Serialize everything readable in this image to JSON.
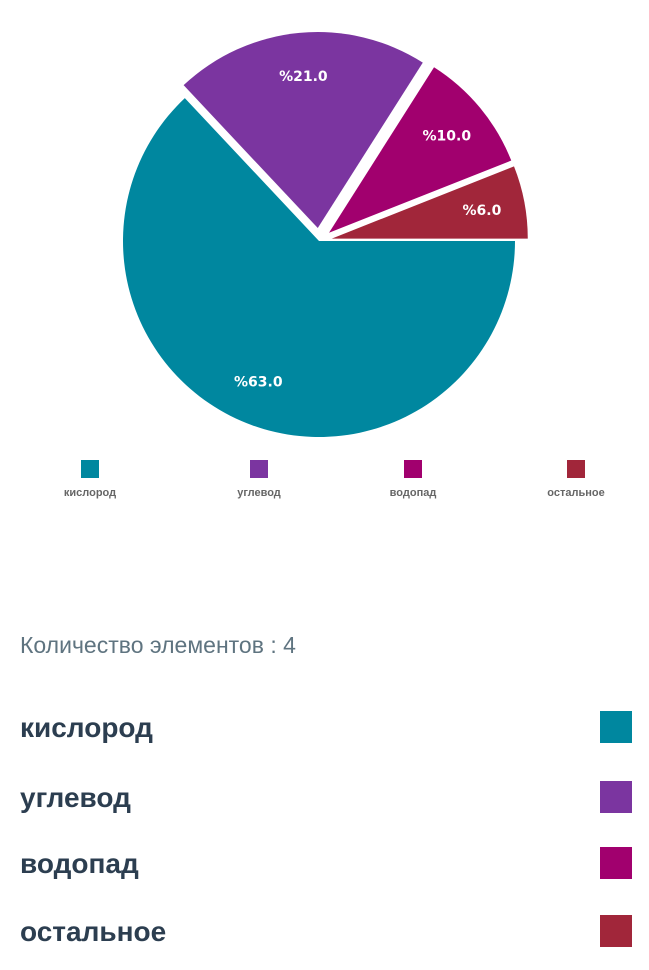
{
  "chart_data": {
    "type": "pie",
    "categories": [
      "кислород",
      "углевод",
      "водопад",
      "остальное"
    ],
    "values": [
      63.0,
      21.0,
      10.0,
      6.0
    ],
    "labels": [
      "%63.0",
      "%21.0",
      "%10.0",
      "%6.0"
    ],
    "colors": [
      "#00879f",
      "#7b35a0",
      "#a1006e",
      "#a1263a"
    ],
    "exploded": [
      false,
      true,
      true,
      true
    ],
    "legend": "bottom"
  },
  "summary": {
    "count_label": "Количество элементов : 4"
  },
  "items": [
    {
      "name": "кислород",
      "color": "#00879f"
    },
    {
      "name": "углевод",
      "color": "#7b35a0"
    },
    {
      "name": "водопад",
      "color": "#a1006e"
    },
    {
      "name": "остальное",
      "color": "#a1263a"
    }
  ]
}
